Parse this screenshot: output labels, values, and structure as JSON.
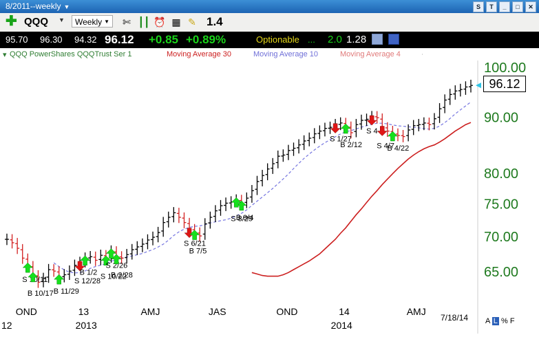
{
  "window": {
    "title": "8/2011--weekly"
  },
  "toolbar": {
    "symbol": "QQQ",
    "period": "Weekly",
    "value": "1.4",
    "icons": [
      "plus-icon",
      "tools-icon",
      "candlestick-icon",
      "alarm-clock-icon",
      "calculator-icon",
      "note-icon"
    ]
  },
  "quote": {
    "open": "95.70",
    "high": "96.30",
    "low": "94.32",
    "last": "96.12",
    "change": "+0.85",
    "change_pct": "+0.89%",
    "optionable": "Optionable",
    "ellipsis": "...",
    "stat1": "2.0",
    "stat2": "1.28",
    "colors": {
      "up": "#19d419",
      "note": "#e6d919"
    }
  },
  "legend": {
    "main": "QQQ PowerShares QQQTrust Ser 1",
    "ma30": "Moving Average 30",
    "ma10": "Moving Average 10",
    "ma4": "Moving Average 4",
    "colors": {
      "main": "#2e7d32",
      "ma30": "#cc2020",
      "ma10": "#6f6fd8",
      "ma4": "#e07a7a"
    }
  },
  "chart_data": {
    "type": "line",
    "subtype": "weekly-ohlc",
    "title": "QQQ PowerShares QQQTrust Ser 1",
    "scale": "log",
    "ylim": [
      61,
      101
    ],
    "y_ticks": [
      65,
      70,
      75,
      80,
      90,
      100
    ],
    "y_tick_labels": [
      "65.00",
      "70.00",
      "75.00",
      "80.00",
      "90.00",
      "100.00"
    ],
    "last_price_label": "96.12",
    "x_labels": [
      {
        "label": "OND",
        "week": 3
      },
      {
        "label": "13",
        "week": 15
      },
      {
        "label": "AMJ",
        "week": 27
      },
      {
        "label": "JAS",
        "week": 40
      },
      {
        "label": "OND",
        "week": 53
      },
      {
        "label": "14",
        "week": 65
      },
      {
        "label": "AMJ",
        "week": 78
      }
    ],
    "year_labels": [
      {
        "label": "12",
        "week": 0
      },
      {
        "label": "2013",
        "week": 15
      },
      {
        "label": "2014",
        "week": 64
      }
    ],
    "date_label": "7/18/14",
    "series": [
      {
        "name": "QQQ PowerShares QQQTrust Ser 1",
        "values": [
          69.5,
          69.0,
          68.2,
          66.8,
          65.8,
          64.5,
          63.5,
          64.0,
          65.2,
          65.0,
          64.2,
          64.5,
          65.0,
          65.8,
          66.2,
          66.8,
          67.0,
          66.5,
          67.2,
          66.8,
          67.8,
          67.0,
          66.8,
          67.3,
          68.0,
          68.4,
          68.8,
          69.4,
          69.8,
          70.5,
          72.0,
          72.8,
          73.5,
          72.8,
          72.0,
          71.0,
          70.5,
          70.0,
          71.8,
          72.8,
          73.8,
          74.6,
          75.0,
          75.2,
          75.5,
          75.0,
          75.8,
          77.0,
          78.5,
          79.5,
          80.6,
          81.5,
          82.8,
          83.0,
          83.8,
          84.2,
          84.8,
          85.5,
          86.0,
          86.8,
          87.3,
          87.8,
          88.0,
          88.5,
          88.8,
          88.2,
          87.0,
          88.5,
          89.3,
          89.5,
          90.0,
          89.8,
          88.0,
          87.3,
          86.8,
          86.5,
          86.3,
          87.5,
          88.3,
          88.5,
          88.8,
          88.5,
          89.6,
          91.5,
          93.2,
          94.3,
          95.0,
          95.3,
          95.8,
          96.12
        ]
      },
      {
        "name": "Moving Average 30",
        "values": [
          64.8,
          64.6,
          64.4,
          64.3,
          64.3,
          64.3,
          64.5,
          64.8,
          65.2,
          65.6,
          66.0,
          66.4,
          66.9,
          67.4,
          68.1,
          68.8,
          69.5,
          70.4,
          71.2,
          72.2,
          73.2,
          74.1,
          75.1,
          76.1,
          77.0,
          78.0,
          78.9,
          79.8,
          80.7,
          81.5,
          82.3,
          83.0,
          83.6,
          84.1,
          84.5,
          84.8,
          85.3,
          85.9,
          86.6,
          87.3,
          87.9,
          88.5,
          88.9
        ]
      },
      {
        "name": "Moving Average 10",
        "values": []
      },
      {
        "name": "Moving Average 4",
        "values": []
      }
    ],
    "signals": [
      {
        "label": "S 10/11",
        "dir": "buy",
        "week": 4
      },
      {
        "label": "B 10/17",
        "dir": "buy",
        "week": 5
      },
      {
        "label": "B 11/29",
        "dir": "buy",
        "week": 10
      },
      {
        "label": "S 12/28",
        "dir": "sell",
        "week": 14
      },
      {
        "label": "B 1/2",
        "dir": "buy",
        "week": 15
      },
      {
        "label": "S 10/22",
        "dir": "buy",
        "week": 19
      },
      {
        "label": "S 2/26",
        "dir": "buy",
        "week": 20
      },
      {
        "label": "B 2/28",
        "dir": "buy",
        "week": 21
      },
      {
        "label": "S 6/21",
        "dir": "sell",
        "week": 35
      },
      {
        "label": "B 7/5",
        "dir": "buy",
        "week": 36
      },
      {
        "label": "B 9/4",
        "dir": "buy",
        "week": 45
      },
      {
        "label": "S 8/29",
        "dir": "buy",
        "week": 44
      },
      {
        "label": "S 1/27",
        "dir": "sell",
        "week": 63
      },
      {
        "label": "B 2/12",
        "dir": "buy",
        "week": 65
      },
      {
        "label": "S 4",
        "dir": "sell",
        "week": 70
      },
      {
        "label": "S 4/7",
        "dir": "sell",
        "week": 72
      },
      {
        "label": "B 4/22",
        "dir": "buy",
        "week": 74
      }
    ],
    "grid": false,
    "legend_position": "top"
  },
  "footer": {
    "buttons": [
      "A",
      "L",
      "%",
      "F"
    ]
  }
}
